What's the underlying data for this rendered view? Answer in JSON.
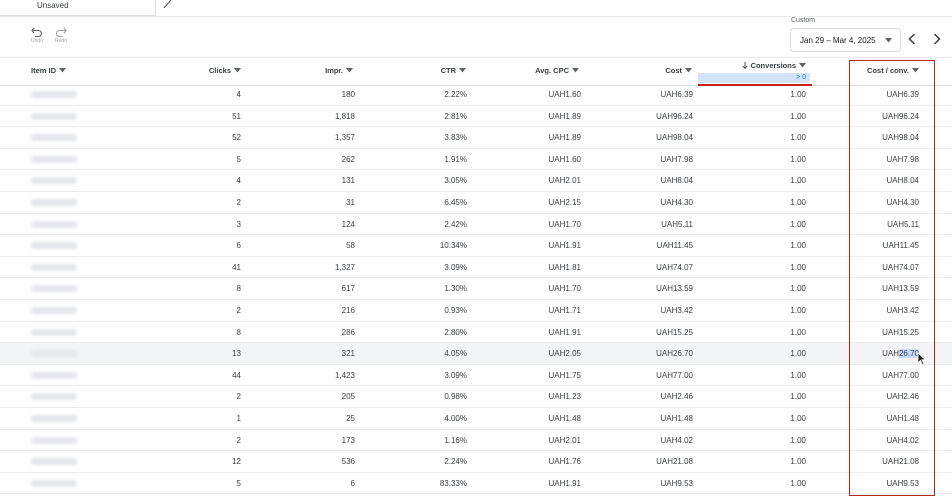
{
  "tab": {
    "label": "Unsaved"
  },
  "toolbar": {
    "undo_label": "Undo",
    "redo_label": "Redo"
  },
  "date_range": {
    "caption": "Custom",
    "value": "Jan 29 – Mar 4, 2025"
  },
  "columns": {
    "item_id": "Item ID",
    "clicks": "Clicks",
    "impr": "Impr.",
    "ctr": "CTR",
    "avg_cpc": "Avg. CPC",
    "cost": "Cost",
    "conversions": "Conversions",
    "conversions_filter": "> 0",
    "cost_per_conv": "Cost / conv."
  },
  "rows": [
    {
      "clicks": "4",
      "impr": "180",
      "ctr": "2.22%",
      "cpc": "UAH1.60",
      "cost": "UAH6.39",
      "conv": "1.00",
      "cpconv": "UAH6.39"
    },
    {
      "clicks": "51",
      "impr": "1,818",
      "ctr": "2.81%",
      "cpc": "UAH1.89",
      "cost": "UAH96.24",
      "conv": "1.00",
      "cpconv": "UAH96.24"
    },
    {
      "clicks": "52",
      "impr": "1,357",
      "ctr": "3.83%",
      "cpc": "UAH1.89",
      "cost": "UAH98.04",
      "conv": "1.00",
      "cpconv": "UAH98.04"
    },
    {
      "clicks": "5",
      "impr": "262",
      "ctr": "1.91%",
      "cpc": "UAH1.60",
      "cost": "UAH7.98",
      "conv": "1.00",
      "cpconv": "UAH7.98"
    },
    {
      "clicks": "4",
      "impr": "131",
      "ctr": "3.05%",
      "cpc": "UAH2.01",
      "cost": "UAH8.04",
      "conv": "1.00",
      "cpconv": "UAH8.04"
    },
    {
      "clicks": "2",
      "impr": "31",
      "ctr": "6.45%",
      "cpc": "UAH2.15",
      "cost": "UAH4.30",
      "conv": "1.00",
      "cpconv": "UAH4.30"
    },
    {
      "clicks": "3",
      "impr": "124",
      "ctr": "2.42%",
      "cpc": "UAH1.70",
      "cost": "UAH5.11",
      "conv": "1.00",
      "cpconv": "UAH5.11"
    },
    {
      "clicks": "6",
      "impr": "58",
      "ctr": "10.34%",
      "cpc": "UAH1.91",
      "cost": "UAH11.45",
      "conv": "1.00",
      "cpconv": "UAH11.45"
    },
    {
      "clicks": "41",
      "impr": "1,327",
      "ctr": "3.09%",
      "cpc": "UAH1.81",
      "cost": "UAH74.07",
      "conv": "1.00",
      "cpconv": "UAH74.07"
    },
    {
      "clicks": "8",
      "impr": "617",
      "ctr": "1.30%",
      "cpc": "UAH1.70",
      "cost": "UAH13.59",
      "conv": "1.00",
      "cpconv": "UAH13.59"
    },
    {
      "clicks": "2",
      "impr": "216",
      "ctr": "0.93%",
      "cpc": "UAH1.71",
      "cost": "UAH3.42",
      "conv": "1.00",
      "cpconv": "UAH3.42"
    },
    {
      "clicks": "8",
      "impr": "286",
      "ctr": "2.80%",
      "cpc": "UAH1.91",
      "cost": "UAH15.25",
      "conv": "1.00",
      "cpconv": "UAH15.25"
    },
    {
      "clicks": "13",
      "impr": "321",
      "ctr": "4.05%",
      "cpc": "UAH2.05",
      "cost": "UAH26.70",
      "conv": "1.00",
      "cpconv": "UAH26.70",
      "hover": true,
      "selected": "26.70"
    },
    {
      "clicks": "44",
      "impr": "1,423",
      "ctr": "3.09%",
      "cpc": "UAH1.75",
      "cost": "UAH77.00",
      "conv": "1.00",
      "cpconv": "UAH77.00"
    },
    {
      "clicks": "2",
      "impr": "205",
      "ctr": "0.98%",
      "cpc": "UAH1.23",
      "cost": "UAH2.46",
      "conv": "1.00",
      "cpconv": "UAH2.46"
    },
    {
      "clicks": "1",
      "impr": "25",
      "ctr": "4.00%",
      "cpc": "UAH1.48",
      "cost": "UAH1.48",
      "conv": "1.00",
      "cpconv": "UAH1.48"
    },
    {
      "clicks": "2",
      "impr": "173",
      "ctr": "1.16%",
      "cpc": "UAH2.01",
      "cost": "UAH4.02",
      "conv": "1.00",
      "cpconv": "UAH4.02"
    },
    {
      "clicks": "12",
      "impr": "536",
      "ctr": "2.24%",
      "cpc": "UAH1.76",
      "cost": "UAH21.08",
      "conv": "1.00",
      "cpconv": "UAH21.08"
    },
    {
      "clicks": "5",
      "impr": "6",
      "ctr": "83.33%",
      "cpc": "UAH1.91",
      "cost": "UAH9.53",
      "conv": "1.00",
      "cpconv": "UAH9.53"
    }
  ],
  "colors": {
    "accent": "#1a73e8",
    "highlight_border": "#b3261e",
    "filter_bg": "#d2e3fc"
  }
}
